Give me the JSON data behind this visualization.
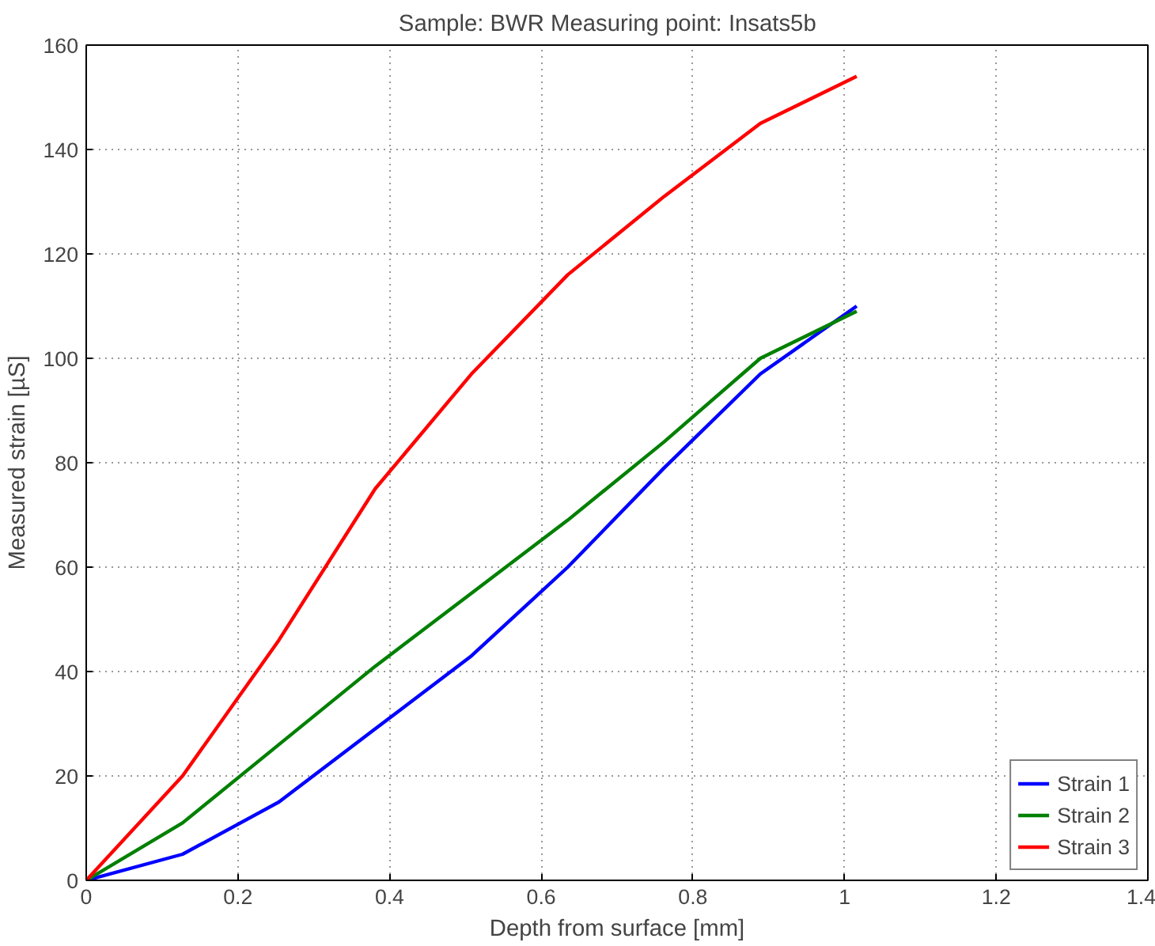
{
  "chart_data": {
    "type": "line",
    "title": "Sample: BWR    Measuring point: Insats5b",
    "xlabel": "Depth from surface [mm]",
    "ylabel": "Measured strain [µS]",
    "x": [
      0,
      0.127,
      0.254,
      0.381,
      0.508,
      0.635,
      0.762,
      0.889,
      1.016
    ],
    "series": [
      {
        "name": "Strain 1",
        "color": "#0000ff",
        "values": [
          0,
          5,
          15,
          29,
          43,
          60,
          79,
          97,
          110
        ]
      },
      {
        "name": "Strain 2",
        "color": "#008000",
        "values": [
          0,
          11,
          26,
          41,
          55,
          69,
          84,
          100,
          109
        ]
      },
      {
        "name": "Strain 3",
        "color": "#ff0000",
        "values": [
          0,
          20,
          46,
          75,
          97,
          116,
          131,
          145,
          154
        ]
      }
    ],
    "xlim": [
      0,
      1.4
    ],
    "ylim": [
      0,
      160
    ],
    "xticks": [
      0,
      0.2,
      0.4,
      0.6,
      0.8,
      1,
      1.2,
      1.4
    ],
    "yticks": [
      0,
      20,
      40,
      60,
      80,
      100,
      120,
      140,
      160
    ],
    "grid": true,
    "legend": "bottom right",
    "line_style": "solid"
  }
}
